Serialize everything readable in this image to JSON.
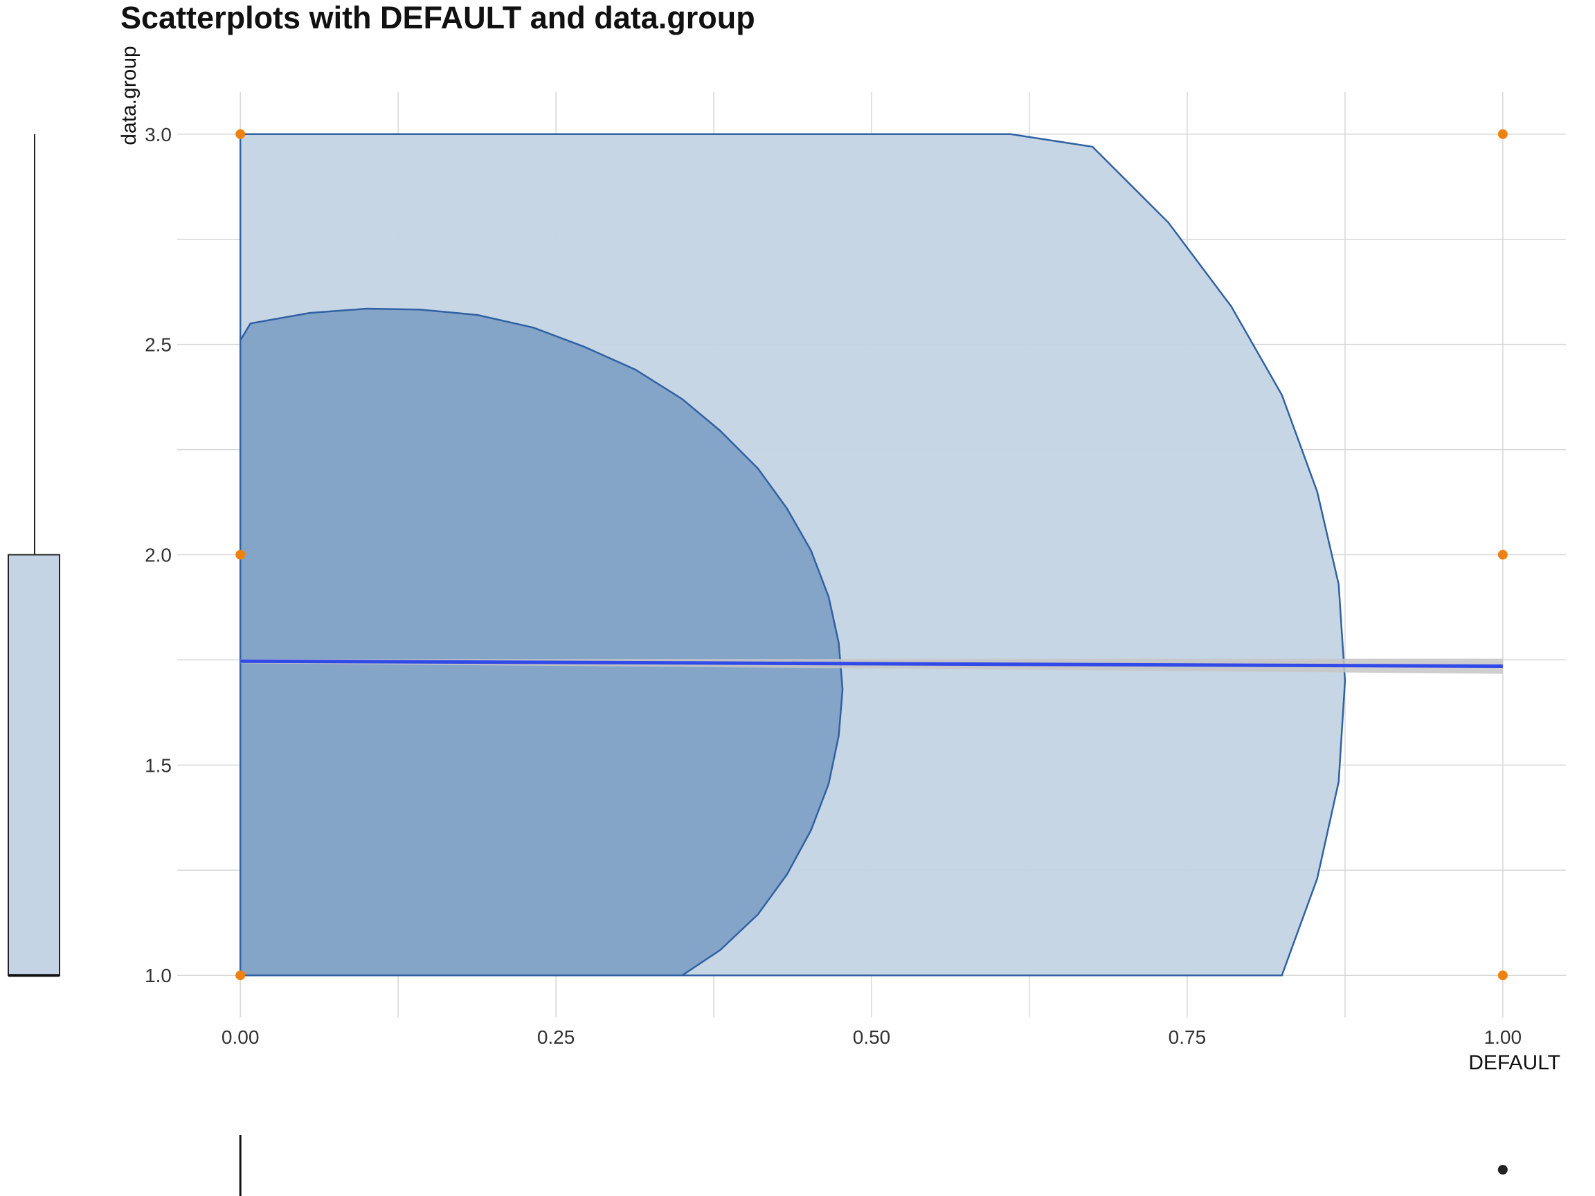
{
  "title": "Scatterplots with DEFAULT and data.group",
  "colors": {
    "outer_contour_fill": "#c4d4e4",
    "inner_contour_fill": "#7e9fc5",
    "contour_line": "#2f61a3",
    "regression_line": "#3049e8",
    "confidence_band": "#c6c6c6",
    "points": "#f0810f",
    "grid": "#d7d7d7",
    "marginal_box_fill": "#c4d4e4"
  },
  "chart_data": {
    "type": "scatter",
    "title": "Scatterplots with DEFAULT and data.group",
    "xlabel": "DEFAULT",
    "ylabel": "data.group",
    "xlim": [
      -0.05,
      1.05
    ],
    "ylim": [
      0.9,
      3.1
    ],
    "x_ticks": [
      0.0,
      0.25,
      0.5,
      0.75,
      1.0
    ],
    "x_tick_labels": [
      "0.00",
      "0.25",
      "0.50",
      "0.75",
      "1.00"
    ],
    "y_ticks": [
      1.0,
      1.5,
      2.0,
      2.5,
      3.0
    ],
    "y_tick_labels": [
      "1.0",
      "1.5",
      "2.0",
      "2.5",
      "3.0"
    ],
    "grid": true,
    "points": [
      {
        "x": 0,
        "y": 1
      },
      {
        "x": 0,
        "y": 2
      },
      {
        "x": 0,
        "y": 3
      },
      {
        "x": 1,
        "y": 1
      },
      {
        "x": 1,
        "y": 2
      },
      {
        "x": 1,
        "y": 3
      }
    ],
    "regression": {
      "x": [
        0,
        1
      ],
      "y": [
        1.747,
        1.735
      ],
      "band_halfwidth": [
        0.005,
        0.018
      ]
    },
    "density_contours": [
      {
        "level": "outer",
        "polygon": [
          [
            0,
            1.0
          ],
          [
            0,
            3.0
          ],
          [
            0.61,
            3.0
          ],
          [
            0.675,
            2.97
          ],
          [
            0.735,
            2.79
          ],
          [
            0.785,
            2.59
          ],
          [
            0.825,
            2.38
          ],
          [
            0.853,
            2.15
          ],
          [
            0.87,
            1.93
          ],
          [
            0.875,
            1.7
          ],
          [
            0.87,
            1.46
          ],
          [
            0.853,
            1.23
          ],
          [
            0.825,
            1.0
          ]
        ]
      },
      {
        "level": "inner",
        "polygon": [
          [
            0,
            1.0
          ],
          [
            0,
            2.51
          ],
          [
            0.008,
            2.55
          ],
          [
            0.055,
            2.575
          ],
          [
            0.1,
            2.585
          ],
          [
            0.142,
            2.583
          ],
          [
            0.188,
            2.57
          ],
          [
            0.232,
            2.54
          ],
          [
            0.272,
            2.495
          ],
          [
            0.313,
            2.44
          ],
          [
            0.35,
            2.37
          ],
          [
            0.38,
            2.295
          ],
          [
            0.41,
            2.205
          ],
          [
            0.433,
            2.11
          ],
          [
            0.452,
            2.01
          ],
          [
            0.466,
            1.9
          ],
          [
            0.474,
            1.79
          ],
          [
            0.477,
            1.68
          ],
          [
            0.474,
            1.57
          ],
          [
            0.466,
            1.455
          ],
          [
            0.452,
            1.345
          ],
          [
            0.433,
            1.24
          ],
          [
            0.41,
            1.145
          ],
          [
            0.38,
            1.06
          ],
          [
            0.35,
            1.0
          ]
        ]
      }
    ],
    "marginal_y_boxplot": {
      "min": 1.0,
      "q1": 1.0,
      "median": 1.0,
      "q3": 2.0,
      "max": 3.0
    },
    "marginal_x_boxplot": {
      "min": 0,
      "q1": 0,
      "median": 0,
      "q3": 0,
      "max": 0,
      "outliers": [
        1
      ]
    }
  }
}
